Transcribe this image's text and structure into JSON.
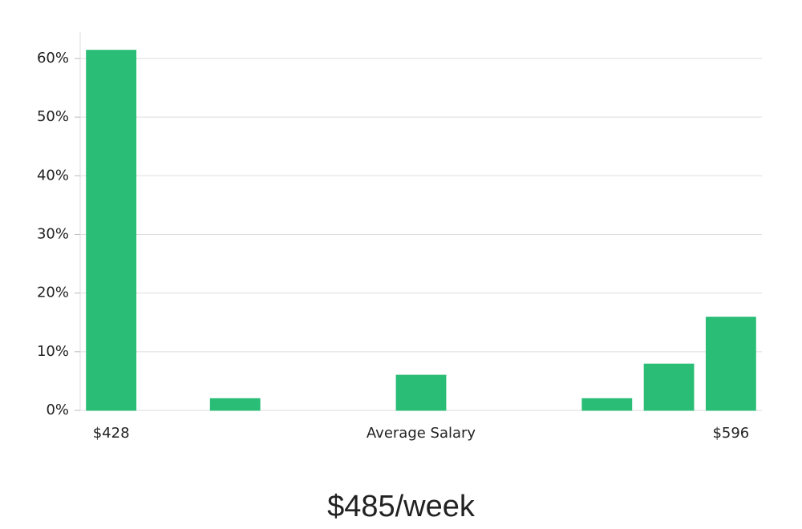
{
  "chart_data": {
    "type": "bar",
    "categories": [
      "$428",
      null,
      null,
      null,
      null,
      null,
      null,
      null,
      null,
      null,
      "$596"
    ],
    "values": [
      61.4,
      0,
      2,
      0,
      0,
      6,
      0,
      0,
      2,
      7.9,
      15.9
    ],
    "color": "#2abd76",
    "x_label": "Average Salary",
    "subtitle": "$485/week",
    "ylim": [
      0,
      64.5
    ],
    "yticks": [
      {
        "value": 0,
        "label": "0%"
      },
      {
        "value": 10,
        "label": "10%"
      },
      {
        "value": 20,
        "label": "20%"
      },
      {
        "value": 30,
        "label": "30%"
      },
      {
        "value": 40,
        "label": "40%"
      },
      {
        "value": 50,
        "label": "50%"
      },
      {
        "value": 60,
        "label": "60%"
      }
    ],
    "grid": true
  }
}
